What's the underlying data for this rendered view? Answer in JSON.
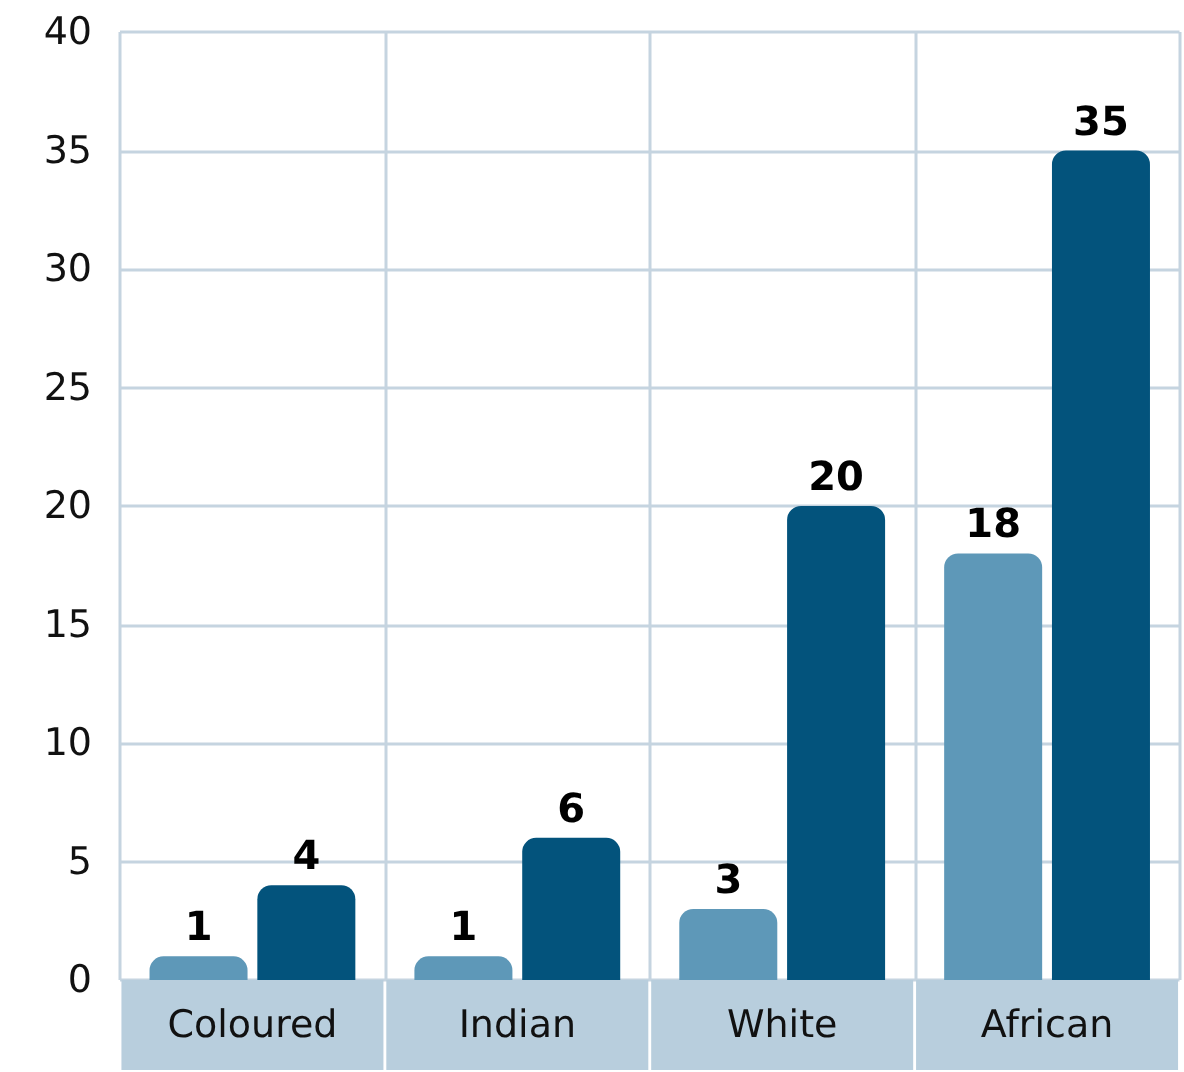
{
  "chart_data": {
    "type": "bar",
    "categories": [
      "Coloured",
      "Indian",
      "White",
      "African"
    ],
    "series": [
      {
        "color": "#5e98b8",
        "values": [
          1,
          1,
          3,
          18
        ]
      },
      {
        "color": "#03537c",
        "values": [
          4,
          6,
          20,
          35
        ]
      }
    ],
    "ylim": [
      0,
      40
    ],
    "yticks": [
      0,
      5,
      10,
      15,
      20,
      25,
      30,
      35,
      40
    ],
    "grid": true,
    "data_labels": true
  }
}
